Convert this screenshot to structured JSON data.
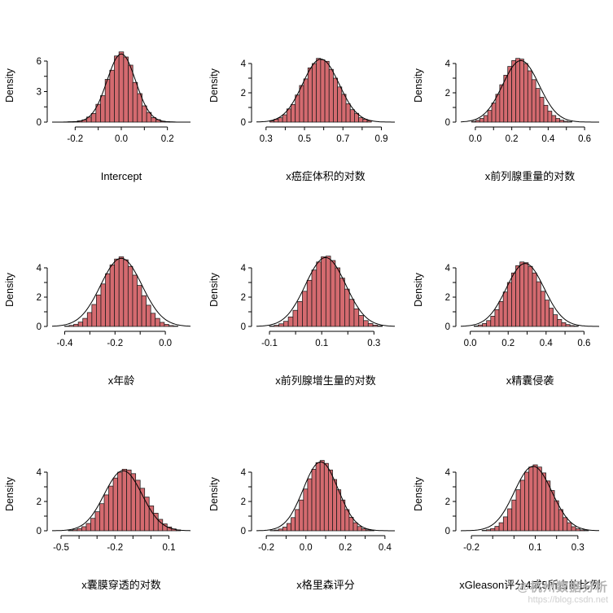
{
  "page": {
    "background": "#ffffff"
  },
  "watermark": {
    "line1": "@杭州数据分析",
    "line2": "https://blog.csdn.net"
  },
  "colors": {
    "bar_fill": "#d46a6f",
    "bar_stroke": "#1a1a1a",
    "axis": "#000000",
    "text": "#000000",
    "watermark": "#b3b3b3"
  },
  "chart_data": [
    {
      "type": "bar",
      "title": "Intercept",
      "ylabel": "Density",
      "xlim": [
        -0.3,
        0.3
      ],
      "ylim": [
        0,
        7.2
      ],
      "xticks": [
        -0.2,
        0.0,
        0.2
      ],
      "xtick_labels": [
        "-0.2",
        "0.0",
        "0.2"
      ],
      "xminor": [
        -0.1,
        0.1
      ],
      "yticks": [
        0,
        3,
        6
      ],
      "ytick_labels": [
        "0",
        "3",
        "6"
      ],
      "yminor": [
        1.5,
        4.5
      ],
      "bin_start": -0.25,
      "bin_width": 0.02,
      "heights": [
        0.02,
        0.04,
        0.06,
        0.12,
        0.22,
        0.5,
        0.85,
        1.75,
        2.6,
        4.2,
        5.1,
        6.5,
        6.9,
        6.4,
        5.6,
        3.9,
        2.8,
        1.6,
        0.95,
        0.45,
        0.24,
        0.09,
        0.05,
        0.02,
        0.01
      ],
      "curve": {
        "mean": 0.0,
        "sd": 0.062,
        "peak": 6.7
      }
    },
    {
      "type": "bar",
      "title": "x癌症体积的对数",
      "ylabel": "Density",
      "xlim": [
        0.25,
        0.97
      ],
      "ylim": [
        0,
        5
      ],
      "xticks": [
        0.3,
        0.5,
        0.7,
        0.9
      ],
      "xtick_labels": [
        "0.3",
        "0.5",
        "0.7",
        "0.9"
      ],
      "xminor": [
        0.4,
        0.6,
        0.8
      ],
      "yticks": [
        0,
        2,
        4
      ],
      "ytick_labels": [
        "0",
        "2",
        "4"
      ],
      "yminor": [
        1,
        3
      ],
      "bin_start": 0.32,
      "bin_width": 0.022,
      "heights": [
        0.08,
        0.2,
        0.3,
        0.5,
        0.9,
        1.2,
        1.85,
        2.5,
        2.95,
        3.7,
        4.0,
        4.35,
        4.25,
        4.15,
        3.6,
        3.0,
        2.4,
        1.9,
        1.25,
        0.85,
        0.6,
        0.3,
        0.2,
        0.1
      ],
      "curve": {
        "mean": 0.585,
        "sd": 0.095,
        "peak": 4.3
      }
    },
    {
      "type": "bar",
      "title": "x前列腺重量的对数",
      "ylabel": "Density",
      "xlim": [
        -0.08,
        0.68
      ],
      "ylim": [
        0,
        5
      ],
      "xticks": [
        0.0,
        0.2,
        0.4,
        0.6
      ],
      "xtick_labels": [
        "0.0",
        "0.2",
        "0.4",
        "0.6"
      ],
      "xminor": [
        0.1,
        0.3,
        0.5
      ],
      "yticks": [
        0,
        2,
        4
      ],
      "ytick_labels": [
        "0",
        "2",
        "4"
      ],
      "yminor": [
        1,
        3
      ],
      "bin_start": -0.02,
      "bin_width": 0.022,
      "heights": [
        0.05,
        0.12,
        0.25,
        0.45,
        0.8,
        1.3,
        1.9,
        2.55,
        3.2,
        3.8,
        4.2,
        4.35,
        4.3,
        4.0,
        3.5,
        2.9,
        2.3,
        1.7,
        1.15,
        0.75,
        0.45,
        0.25,
        0.13,
        0.06,
        0.03
      ],
      "curve": {
        "mean": 0.25,
        "sd": 0.1,
        "peak": 4.2
      }
    },
    {
      "type": "bar",
      "title": "x年龄",
      "ylabel": "Density",
      "xlim": [
        -0.45,
        0.1
      ],
      "ylim": [
        0,
        5
      ],
      "xticks": [
        -0.4,
        -0.2,
        0.0
      ],
      "xtick_labels": [
        "-0.4",
        "-0.2",
        "0.0"
      ],
      "xminor": [
        -0.3,
        -0.1
      ],
      "yticks": [
        0,
        2,
        4
      ],
      "ytick_labels": [
        "0",
        "2",
        "4"
      ],
      "yminor": [
        1,
        3
      ],
      "bin_start": -0.4,
      "bin_width": 0.018,
      "heights": [
        0.03,
        0.07,
        0.15,
        0.3,
        0.55,
        0.95,
        1.5,
        2.15,
        2.9,
        3.6,
        4.2,
        4.6,
        4.75,
        4.55,
        4.1,
        3.5,
        2.8,
        2.1,
        1.45,
        0.9,
        0.55,
        0.28,
        0.14,
        0.06,
        0.03
      ],
      "curve": {
        "mean": -0.175,
        "sd": 0.082,
        "peak": 4.65
      }
    },
    {
      "type": "bar",
      "title": "x前列腺增生量的对数",
      "ylabel": "Density",
      "xlim": [
        -0.15,
        0.38
      ],
      "ylim": [
        0,
        5
      ],
      "xticks": [
        -0.1,
        0.1,
        0.3
      ],
      "xtick_labels": [
        "-0.1",
        "0.1",
        "0.3"
      ],
      "xminor": [
        0.0,
        0.2
      ],
      "yticks": [
        0,
        2,
        4
      ],
      "ytick_labels": [
        "0",
        "2",
        "4"
      ],
      "yminor": [
        1,
        3
      ],
      "bin_start": -0.1,
      "bin_width": 0.018,
      "heights": [
        0.03,
        0.08,
        0.18,
        0.35,
        0.65,
        1.1,
        1.7,
        2.4,
        3.15,
        3.85,
        4.4,
        4.75,
        4.8,
        4.5,
        4.0,
        3.3,
        2.55,
        1.85,
        1.2,
        0.75,
        0.4,
        0.2,
        0.09,
        0.04
      ],
      "curve": {
        "mean": 0.115,
        "sd": 0.077,
        "peak": 4.7
      }
    },
    {
      "type": "bar",
      "title": "x精囊侵袭",
      "ylabel": "Density",
      "xlim": [
        -0.05,
        0.68
      ],
      "ylim": [
        0,
        5
      ],
      "xticks": [
        0.0,
        0.2,
        0.4,
        0.6
      ],
      "xtick_labels": [
        "0.0",
        "0.2",
        "0.4",
        "0.6"
      ],
      "xminor": [
        0.1,
        0.3,
        0.5
      ],
      "yticks": [
        0,
        2,
        4
      ],
      "ytick_labels": [
        "0",
        "2",
        "4"
      ],
      "yminor": [
        1,
        3
      ],
      "bin_start": 0.02,
      "bin_width": 0.022,
      "heights": [
        0.04,
        0.1,
        0.2,
        0.4,
        0.7,
        1.15,
        1.7,
        2.35,
        3.0,
        3.65,
        4.15,
        4.4,
        4.35,
        4.1,
        3.65,
        3.05,
        2.4,
        1.8,
        1.25,
        0.8,
        0.48,
        0.26,
        0.13,
        0.06,
        0.03
      ],
      "curve": {
        "mean": 0.29,
        "sd": 0.1,
        "peak": 4.3
      }
    },
    {
      "type": "bar",
      "title": "x囊膜穿透的对数",
      "ylabel": "Density",
      "xlim": [
        -0.55,
        0.22
      ],
      "ylim": [
        0,
        5
      ],
      "xticks": [
        -0.5,
        -0.2,
        0.1
      ],
      "xtick_labels": [
        "-0.5",
        "-0.2",
        "0.1"
      ],
      "xminor": [
        -0.4,
        -0.3,
        -0.1,
        0.0
      ],
      "yticks": [
        0,
        2,
        4
      ],
      "ytick_labels": [
        "0",
        "2",
        "4"
      ],
      "yminor": [
        1,
        3
      ],
      "bin_start": -0.46,
      "bin_width": 0.025,
      "heights": [
        0.03,
        0.07,
        0.15,
        0.28,
        0.5,
        0.85,
        1.3,
        1.85,
        2.45,
        3.05,
        3.6,
        4.0,
        4.2,
        4.15,
        3.9,
        3.45,
        2.9,
        2.3,
        1.7,
        1.2,
        0.78,
        0.47,
        0.26,
        0.13,
        0.06
      ],
      "curve": {
        "mean": -0.155,
        "sd": 0.105,
        "peak": 4.1
      }
    },
    {
      "type": "bar",
      "title": "x格里森评分",
      "ylabel": "Density",
      "xlim": [
        -0.25,
        0.45
      ],
      "ylim": [
        0,
        5
      ],
      "xticks": [
        -0.2,
        0.0,
        0.2,
        0.4
      ],
      "xtick_labels": [
        "-0.2",
        "0.0",
        "0.2",
        "0.4"
      ],
      "xminor": [
        -0.1,
        0.1,
        0.3
      ],
      "yticks": [
        0,
        2,
        4
      ],
      "ytick_labels": [
        "0",
        "2",
        "4"
      ],
      "yminor": [
        1,
        3
      ],
      "bin_start": -0.18,
      "bin_width": 0.021,
      "heights": [
        0.02,
        0.05,
        0.12,
        0.25,
        0.5,
        0.9,
        1.45,
        2.1,
        2.85,
        3.55,
        4.2,
        4.65,
        4.8,
        4.6,
        4.15,
        3.5,
        2.8,
        2.1,
        1.45,
        0.92,
        0.55,
        0.29,
        0.14,
        0.06,
        0.03
      ],
      "curve": {
        "mean": 0.075,
        "sd": 0.088,
        "peak": 4.7
      }
    },
    {
      "type": "bar",
      "title": "xGleason评分4或5所占的比例",
      "ylabel": "Density",
      "xlim": [
        -0.25,
        0.4
      ],
      "ylim": [
        0,
        5
      ],
      "xticks": [
        -0.2,
        0.1,
        0.3
      ],
      "xtick_labels": [
        "-0.2",
        "0.1",
        "0.3"
      ],
      "xminor": [
        -0.1,
        0.0,
        0.2
      ],
      "yticks": [
        0,
        2,
        4
      ],
      "ytick_labels": [
        "0",
        "2",
        "4"
      ],
      "yminor": [
        1,
        3
      ],
      "bin_start": -0.15,
      "bin_width": 0.02,
      "heights": [
        0.03,
        0.07,
        0.15,
        0.3,
        0.55,
        0.95,
        1.5,
        2.1,
        2.8,
        3.45,
        4.0,
        4.35,
        4.5,
        4.35,
        3.95,
        3.4,
        2.75,
        2.05,
        1.45,
        0.9,
        0.55,
        0.28,
        0.14,
        0.06,
        0.03
      ],
      "curve": {
        "mean": 0.09,
        "sd": 0.088,
        "peak": 4.4
      }
    }
  ]
}
